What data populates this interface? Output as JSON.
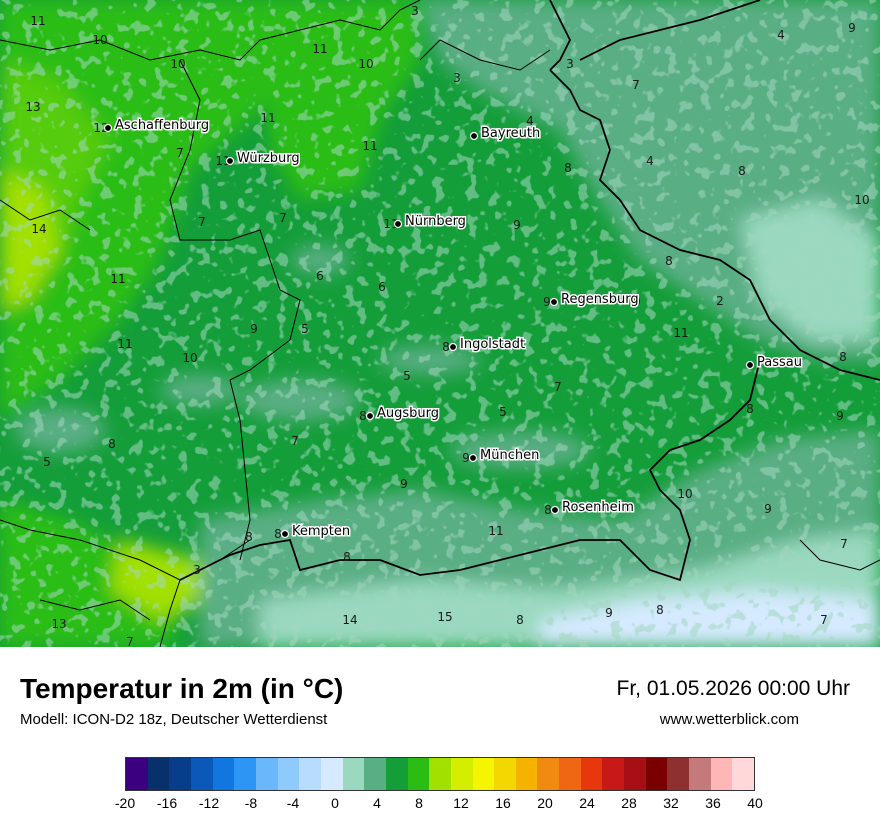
{
  "map": {
    "title": "Temperatur in 2m (in °C)",
    "model": "Modell: ICON-D2 18z, Deutscher Wetterdienst",
    "datetime": "Fr, 01.05.2026 00:00 Uhr",
    "website": "www.wetterblick.com"
  },
  "cities": [
    {
      "name": "Aschaffenburg",
      "value": "12"
    },
    {
      "name": "Würzburg",
      "value": "11"
    },
    {
      "name": "Bayreuth",
      "value": ""
    },
    {
      "name": "Nürnberg",
      "value": "11"
    },
    {
      "name": "Regensburg",
      "value": "9"
    },
    {
      "name": "Ingolstadt",
      "value": "8"
    },
    {
      "name": "Passau",
      "value": ""
    },
    {
      "name": "Augsburg",
      "value": "8"
    },
    {
      "name": "München",
      "value": "9"
    },
    {
      "name": "Rosenheim",
      "value": "8"
    },
    {
      "name": "Kempten",
      "value": "8"
    }
  ],
  "values": [
    "11",
    "3",
    "10",
    "9",
    "11",
    "10",
    "10",
    "3",
    "3",
    "13",
    "11",
    "7",
    "4",
    "11",
    "7",
    "4",
    "8",
    "8",
    "14",
    "7",
    "7",
    "11",
    "9",
    "8",
    "6",
    "6",
    "11",
    "9",
    "9",
    "5",
    "2",
    "10",
    "11",
    "10",
    "8",
    "7",
    "5",
    "8",
    "5",
    "8",
    "9",
    "7",
    "5",
    "9",
    "10",
    "9",
    "11",
    "8",
    "7",
    "3",
    "13",
    "7",
    "14",
    "15",
    "8",
    "9",
    "8",
    "7",
    "8",
    "4"
  ],
  "legend": {
    "ticks": [
      "-20",
      "-16",
      "-12",
      "-8",
      "-4",
      "0",
      "4",
      "8",
      "12",
      "16",
      "20",
      "24",
      "28",
      "32",
      "36",
      "40"
    ],
    "colors": [
      "#3a0080",
      "#08306b",
      "#083d8c",
      "#0a58b8",
      "#1176e0",
      "#2c95f5",
      "#6ab8fb",
      "#8fcafd",
      "#b7dcfe",
      "#d5eaff",
      "#9ad9c0",
      "#5aae84",
      "#149e3a",
      "#2cbd14",
      "#a2e000",
      "#d4ee00",
      "#f5f500",
      "#f2d800",
      "#f5b300",
      "#f08a10",
      "#f06612",
      "#e6380c",
      "#c81818",
      "#a80f14",
      "#7a0000",
      "#8f3030",
      "#c47a7a",
      "#ffb6b6",
      "#ffd9d9"
    ]
  }
}
